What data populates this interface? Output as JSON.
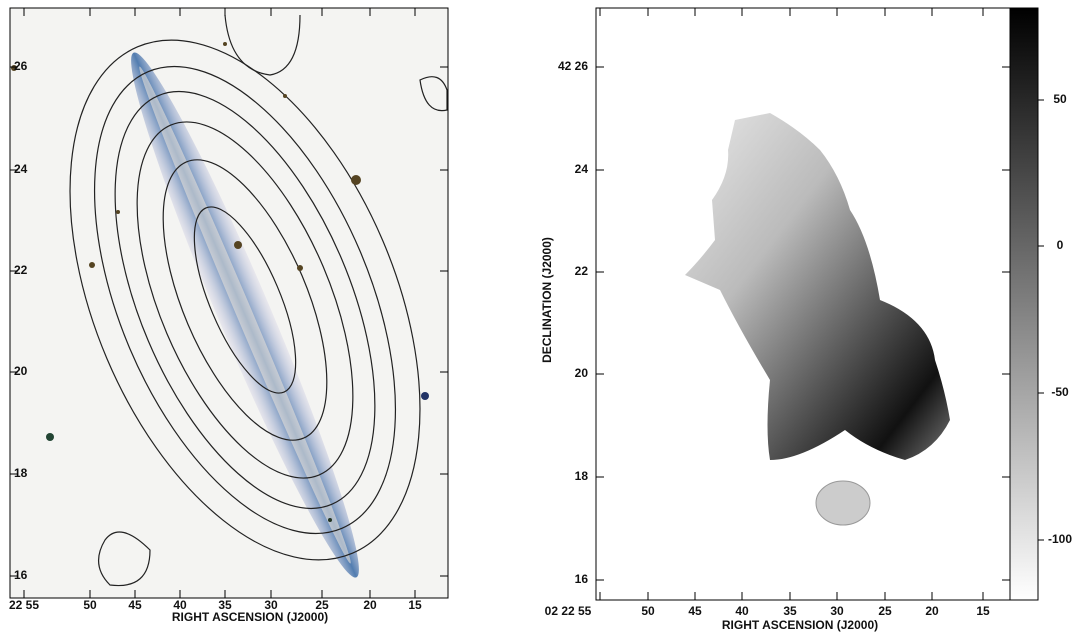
{
  "left_panel": {
    "y_tick_labels": [
      "26",
      "24",
      "22",
      "20",
      "18",
      "16"
    ],
    "x_tick_labels": [
      "22 55",
      "50",
      "45",
      "40",
      "35",
      "30",
      "25",
      "20",
      "15"
    ],
    "x_axis_label": "RIGHT ASCENSION (J2000)"
  },
  "right_panel": {
    "y_tick_labels": [
      "42 26",
      "24",
      "22",
      "20",
      "18",
      "16"
    ],
    "x_tick_labels": [
      "02 22 55",
      "50",
      "45",
      "40",
      "35",
      "30",
      "25",
      "20",
      "15"
    ],
    "x_axis_label": "RIGHT ASCENSION (J2000)",
    "y_axis_label": "DECLINATION (J2000)",
    "colorbar_tick_labels": [
      "50",
      "0",
      "-50",
      "-100"
    ]
  }
}
